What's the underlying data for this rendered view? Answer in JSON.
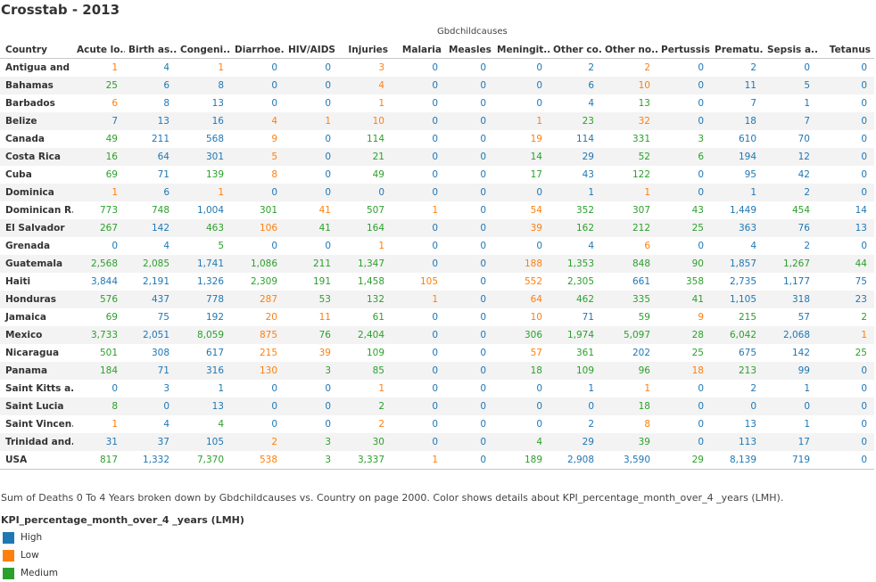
{
  "title": "Crosstab - 2013",
  "column_group_label": "Gbdchildcauses",
  "row_header": "Country",
  "caption": "Sum of Deaths 0 To 4 Years broken down by Gbdchildcauses vs. Country on page 2000.  Color shows details about KPI_percentage_month_over_4 _years (LMH).",
  "legend_title": "KPI_percentage_month_over_4 _years (LMH)",
  "colors": {
    "H": "#1f77b4",
    "L": "#ff7f0e",
    "M": "#2ca02c"
  },
  "legend": [
    {
      "key": "H",
      "label": "High"
    },
    {
      "key": "L",
      "label": "Low"
    },
    {
      "key": "M",
      "label": "Medium"
    }
  ],
  "chart_data": {
    "type": "table",
    "columns": [
      "Acute lo..",
      "Birth as..",
      "Congeni..",
      "Diarrhoe..",
      "HIV/AIDS",
      "Injuries",
      "Malaria",
      "Measles",
      "Meningit..",
      "Other co..",
      "Other no..",
      "Pertussis",
      "Prematu..",
      "Sepsis a..",
      "Tetanus"
    ],
    "rows": [
      {
        "country": "Antigua and ..",
        "values": [
          "1",
          "4",
          "1",
          "0",
          "0",
          "3",
          "0",
          "0",
          "0",
          "2",
          "2",
          "0",
          "2",
          "0",
          "0"
        ],
        "levels": "LHLHHLHHHHLHHHH"
      },
      {
        "country": "Bahamas",
        "values": [
          "25",
          "6",
          "8",
          "0",
          "0",
          "4",
          "0",
          "0",
          "0",
          "6",
          "10",
          "0",
          "11",
          "5",
          "0"
        ],
        "levels": "MHHHHLHHHHLHHHH"
      },
      {
        "country": "Barbados",
        "values": [
          "6",
          "8",
          "13",
          "0",
          "0",
          "1",
          "0",
          "0",
          "0",
          "4",
          "13",
          "0",
          "7",
          "1",
          "0"
        ],
        "levels": "LHHHHLHHHHMHHHH"
      },
      {
        "country": "Belize",
        "values": [
          "7",
          "13",
          "16",
          "4",
          "1",
          "10",
          "0",
          "0",
          "1",
          "23",
          "32",
          "0",
          "18",
          "7",
          "0"
        ],
        "levels": "HHHLLLHHLMLHHHH"
      },
      {
        "country": "Canada",
        "values": [
          "49",
          "211",
          "568",
          "9",
          "0",
          "114",
          "0",
          "0",
          "19",
          "114",
          "331",
          "3",
          "610",
          "70",
          "0"
        ],
        "levels": "MHHLHMHHLHMMHHH"
      },
      {
        "country": "Costa Rica",
        "values": [
          "16",
          "64",
          "301",
          "5",
          "0",
          "21",
          "0",
          "0",
          "14",
          "29",
          "52",
          "6",
          "194",
          "12",
          "0"
        ],
        "levels": "MHHLHMHHMHMMHHH"
      },
      {
        "country": "Cuba",
        "values": [
          "69",
          "71",
          "139",
          "8",
          "0",
          "49",
          "0",
          "0",
          "17",
          "43",
          "122",
          "0",
          "95",
          "42",
          "0"
        ],
        "levels": "MHMLHMHHMHMHHHH"
      },
      {
        "country": "Dominica",
        "values": [
          "1",
          "6",
          "1",
          "0",
          "0",
          "0",
          "0",
          "0",
          "0",
          "1",
          "1",
          "0",
          "1",
          "2",
          "0"
        ],
        "levels": "LHLHHHHHHHLHHHH"
      },
      {
        "country": "Dominican R..",
        "values": [
          "773",
          "748",
          "1,004",
          "301",
          "41",
          "507",
          "1",
          "0",
          "54",
          "352",
          "307",
          "43",
          "1,449",
          "454",
          "14"
        ],
        "levels": "MMHMLMLHLMMMHMH"
      },
      {
        "country": "El Salvador",
        "values": [
          "267",
          "142",
          "463",
          "106",
          "41",
          "164",
          "0",
          "0",
          "39",
          "162",
          "212",
          "25",
          "363",
          "76",
          "13"
        ],
        "levels": "MHMLMMHHLMMMHHH"
      },
      {
        "country": "Grenada",
        "values": [
          "0",
          "4",
          "5",
          "0",
          "0",
          "1",
          "0",
          "0",
          "0",
          "4",
          "6",
          "0",
          "4",
          "2",
          "0"
        ],
        "levels": "HHMHHLHHHHLHHHH"
      },
      {
        "country": "Guatemala",
        "values": [
          "2,568",
          "2,085",
          "1,741",
          "1,086",
          "211",
          "1,347",
          "0",
          "0",
          "188",
          "1,353",
          "848",
          "90",
          "1,857",
          "1,267",
          "44"
        ],
        "levels": "MMHMMMHHLMMMHMM"
      },
      {
        "country": "Haiti",
        "values": [
          "3,844",
          "2,191",
          "1,326",
          "2,309",
          "191",
          "1,458",
          "105",
          "0",
          "552",
          "2,305",
          "661",
          "358",
          "2,735",
          "1,177",
          "75"
        ],
        "levels": "HHHMMMLHLMHMHHH"
      },
      {
        "country": "Honduras",
        "values": [
          "576",
          "437",
          "778",
          "287",
          "53",
          "132",
          "1",
          "0",
          "64",
          "462",
          "335",
          "41",
          "1,105",
          "318",
          "23"
        ],
        "levels": "MHHLMMLHLMMMHHH"
      },
      {
        "country": "Jamaica",
        "values": [
          "69",
          "75",
          "192",
          "20",
          "11",
          "61",
          "0",
          "0",
          "10",
          "71",
          "59",
          "9",
          "215",
          "57",
          "2"
        ],
        "levels": "MHHLLMHHLHMLMHM"
      },
      {
        "country": "Mexico",
        "values": [
          "3,733",
          "2,051",
          "8,059",
          "875",
          "76",
          "2,404",
          "0",
          "0",
          "306",
          "1,974",
          "5,097",
          "28",
          "6,042",
          "2,068",
          "1"
        ],
        "levels": "MHMLMMHHMMMMMHL"
      },
      {
        "country": "Nicaragua",
        "values": [
          "501",
          "308",
          "617",
          "215",
          "39",
          "109",
          "0",
          "0",
          "57",
          "361",
          "202",
          "25",
          "675",
          "142",
          "25"
        ],
        "levels": "MHHLLMHHLMHMHHM"
      },
      {
        "country": "Panama",
        "values": [
          "184",
          "71",
          "316",
          "130",
          "3",
          "85",
          "0",
          "0",
          "18",
          "109",
          "96",
          "18",
          "213",
          "99",
          "0"
        ],
        "levels": "MHHLMMHHMMMLMHH"
      },
      {
        "country": "Saint Kitts a..",
        "values": [
          "0",
          "3",
          "1",
          "0",
          "0",
          "1",
          "0",
          "0",
          "0",
          "1",
          "1",
          "0",
          "2",
          "1",
          "0"
        ],
        "levels": "HHHHHLHHHHLHHHH"
      },
      {
        "country": "Saint Lucia",
        "values": [
          "8",
          "0",
          "13",
          "0",
          "0",
          "2",
          "0",
          "0",
          "0",
          "0",
          "18",
          "0",
          "0",
          "0",
          "0"
        ],
        "levels": "MHHHHMHHHHMHHHH"
      },
      {
        "country": "Saint Vincen..",
        "values": [
          "1",
          "4",
          "4",
          "0",
          "0",
          "2",
          "0",
          "0",
          "0",
          "2",
          "8",
          "0",
          "13",
          "1",
          "0"
        ],
        "levels": "LHMHHLHHHHLHHHH"
      },
      {
        "country": "Trinidad and..",
        "values": [
          "31",
          "37",
          "105",
          "2",
          "3",
          "30",
          "0",
          "0",
          "4",
          "29",
          "39",
          "0",
          "113",
          "17",
          "0"
        ],
        "levels": "HHHLMMHHMHMHHHH"
      },
      {
        "country": "USA",
        "values": [
          "817",
          "1,332",
          "7,370",
          "538",
          "3",
          "3,337",
          "1",
          "0",
          "189",
          "2,908",
          "3,590",
          "29",
          "8,139",
          "719",
          "0"
        ],
        "levels": "MHMLMMLHMHHMHHH"
      }
    ]
  }
}
